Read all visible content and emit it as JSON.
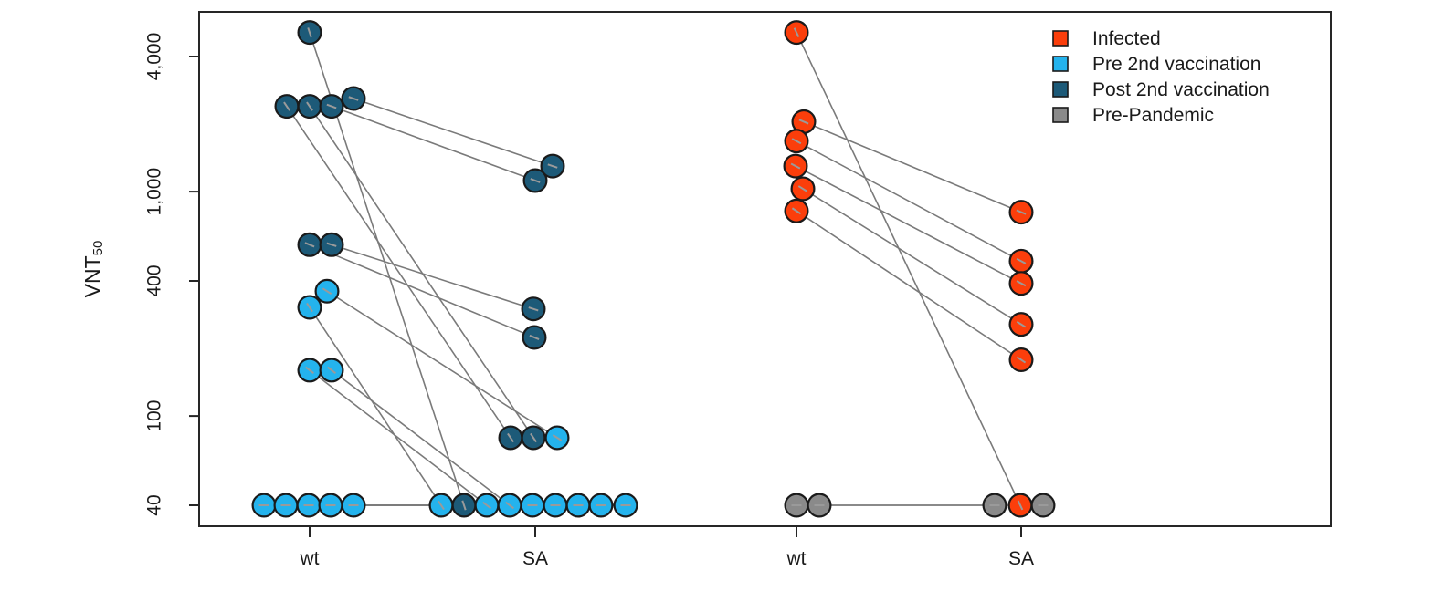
{
  "figure": {
    "background": "#ffffff",
    "ylabel": {
      "text": "VNT",
      "subscript": "50"
    },
    "y_axis": {
      "scale": "log10",
      "ticks": [
        {
          "label": "4,000",
          "value": 4000
        },
        {
          "label": "1,000",
          "value": 1000
        },
        {
          "label": "400",
          "value": 400
        },
        {
          "label": "100",
          "value": 100
        },
        {
          "label": "40",
          "value": 40
        }
      ]
    },
    "x_axis": {
      "ticks": [
        {
          "label": "wt",
          "panel": 1,
          "col": "wt"
        },
        {
          "label": "SA",
          "panel": 1,
          "col": "sa"
        },
        {
          "label": "wt",
          "panel": 2,
          "col": "wt"
        },
        {
          "label": "SA",
          "panel": 2,
          "col": "sa"
        }
      ]
    },
    "legend": [
      {
        "label": "Infected",
        "key": "infected"
      },
      {
        "label": "Pre 2nd vaccination",
        "key": "pre2"
      },
      {
        "label": "Post 2nd vaccination",
        "key": "post2"
      },
      {
        "label": "Pre-Pandemic",
        "key": "prepand"
      }
    ],
    "colors": {
      "infected": "#FB3E0B",
      "pre2": "#24B3ED",
      "post2": "#1D5A78",
      "prepand": "#8A8A8A",
      "point_outline": "#1A1A1A",
      "pair_line": "#7A7A7A",
      "dash_artifact": "#9A9A9A",
      "axis": "#262626"
    }
  },
  "chart_data": {
    "type": "scatter",
    "title": "",
    "ylabel": "VNT50",
    "yscale": "log10",
    "ylim": [
      30,
      5800
    ],
    "yticks": [
      4000,
      1000,
      400,
      100,
      40
    ],
    "categories": [
      "wt",
      "SA"
    ],
    "grid": false,
    "legend_position": "top-right",
    "panels": [
      {
        "id": 1,
        "groups": [
          "pre2",
          "post2"
        ]
      },
      {
        "id": 2,
        "groups": [
          "infected",
          "prepand"
        ]
      }
    ],
    "subjects": [
      {
        "group": "post2",
        "panel": 1,
        "wt": 5120,
        "sa": 40,
        "jw": 0,
        "js": -78
      },
      {
        "group": "post2",
        "panel": 1,
        "wt": 2400,
        "sa": 80,
        "jw": -25,
        "js": -27
      },
      {
        "group": "post2",
        "panel": 1,
        "wt": 2400,
        "sa": 80,
        "jw": 0,
        "js": -2
      },
      {
        "group": "post2",
        "panel": 1,
        "wt": 2400,
        "sa": 1120,
        "jw": 24,
        "js": 0
      },
      {
        "group": "post2",
        "panel": 1,
        "wt": 2600,
        "sa": 1300,
        "jw": 48,
        "js": 19
      },
      {
        "group": "post2",
        "panel": 1,
        "wt": 580,
        "sa": 224,
        "jw": 0,
        "js": -1
      },
      {
        "group": "post2",
        "panel": 1,
        "wt": 580,
        "sa": 300,
        "jw": 24,
        "js": -2
      },
      {
        "group": "pre2",
        "panel": 1,
        "wt": 360,
        "sa": 80,
        "jw": 19,
        "js": 24
      },
      {
        "group": "pre2",
        "panel": 1,
        "wt": 305,
        "sa": 40,
        "jw": 0,
        "js": -103
      },
      {
        "group": "pre2",
        "panel": 1,
        "wt": 160,
        "sa": 40,
        "jw": 0,
        "js": -53
      },
      {
        "group": "pre2",
        "panel": 1,
        "wt": 160,
        "sa": 40,
        "jw": 24,
        "js": -28
      },
      {
        "group": "pre2",
        "panel": 1,
        "wt": 40,
        "sa": 40,
        "jw": -50,
        "js": -3
      },
      {
        "group": "pre2",
        "panel": 1,
        "wt": 40,
        "sa": 40,
        "jw": -26,
        "js": 22
      },
      {
        "group": "pre2",
        "panel": 1,
        "wt": 40,
        "sa": 40,
        "jw": -1,
        "js": 47
      },
      {
        "group": "pre2",
        "panel": 1,
        "wt": 40,
        "sa": 40,
        "jw": 23,
        "js": 72
      },
      {
        "group": "pre2",
        "panel": 1,
        "wt": 40,
        "sa": 40,
        "jw": 48,
        "js": 99
      },
      {
        "group": "infected",
        "panel": 2,
        "wt": 5120,
        "sa": 40,
        "jw": 0,
        "js": -1
      },
      {
        "group": "infected",
        "panel": 2,
        "wt": 2050,
        "sa": 810,
        "jw": 8,
        "js": 0
      },
      {
        "group": "infected",
        "panel": 2,
        "wt": 1680,
        "sa": 490,
        "jw": 0,
        "js": 0
      },
      {
        "group": "infected",
        "panel": 2,
        "wt": 1300,
        "sa": 390,
        "jw": -1,
        "js": 0
      },
      {
        "group": "infected",
        "panel": 2,
        "wt": 1030,
        "sa": 256,
        "jw": 7,
        "js": 0
      },
      {
        "group": "infected",
        "panel": 2,
        "wt": 820,
        "sa": 178,
        "jw": 0,
        "js": 0
      },
      {
        "group": "prepand",
        "panel": 2,
        "wt": 40,
        "sa": 40,
        "jw": 0,
        "js": -29
      },
      {
        "group": "prepand",
        "panel": 2,
        "wt": 40,
        "sa": 40,
        "jw": 25,
        "js": 24
      }
    ]
  }
}
